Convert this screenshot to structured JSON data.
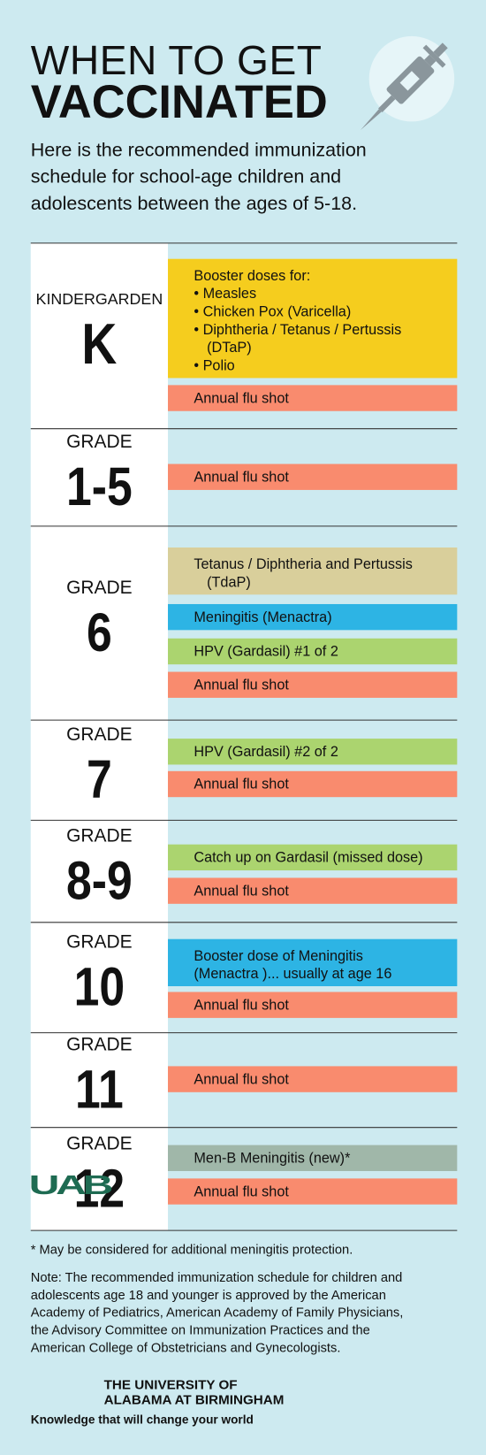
{
  "header": {
    "title_lines": [
      "WHEN TO GET",
      "VACCINATED"
    ],
    "subtitle_lines": [
      "Here is the recommended immunization",
      "schedule for school-age children and",
      "adolescents between the ages of 5-18."
    ]
  },
  "rows": [
    {
      "label": "KINDERGARDEN",
      "number": "K",
      "items": [
        {
          "lines": [
            "Booster doses for:",
            "• Measles",
            "• Chicken Pox (Varicella)",
            "• Diphtheria / Tetanus / Pertussis",
            "(DTaP)",
            "• Polio"
          ],
          "color": "#f5cd1e"
        },
        {
          "lines": [
            "Annual flu shot"
          ],
          "color": "#f98b6e"
        }
      ]
    },
    {
      "label": "GRADE",
      "number": "1-5",
      "items": [
        {
          "lines": [
            "Annual flu shot"
          ],
          "color": "#f98b6e"
        }
      ]
    },
    {
      "label": "GRADE",
      "number": "6",
      "items": [
        {
          "lines": [
            "Tetanus / Diphtheria and Pertussis",
            "(TdaP)"
          ],
          "color": "#d9cf9b"
        },
        {
          "lines": [
            "Meningitis (Menactra)"
          ],
          "color": "#2db4e4"
        },
        {
          "lines": [
            "HPV (Gardasil) #1 of 2"
          ],
          "color": "#abd46f"
        },
        {
          "lines": [
            "Annual flu shot"
          ],
          "color": "#f98b6e"
        }
      ]
    },
    {
      "label": "GRADE",
      "number": "7",
      "items": [
        {
          "lines": [
            "HPV (Gardasil) #2 of 2"
          ],
          "color": "#abd46f"
        },
        {
          "lines": [
            "Annual flu shot"
          ],
          "color": "#f98b6e"
        }
      ]
    },
    {
      "label": "GRADE",
      "number": "8-9",
      "items": [
        {
          "lines": [
            "Catch up on Gardasil (missed dose)"
          ],
          "color": "#abd46f"
        },
        {
          "lines": [
            "Annual flu shot"
          ],
          "color": "#f98b6e"
        }
      ]
    },
    {
      "label": "GRADE",
      "number": "10",
      "items": [
        {
          "lines": [
            "Booster dose of Meningitis",
            "(Menactra )... usually at age 16"
          ],
          "color": "#2db4e4"
        },
        {
          "lines": [
            "Annual flu shot"
          ],
          "color": "#f98b6e"
        }
      ]
    },
    {
      "label": "GRADE",
      "number": "11",
      "items": [
        {
          "lines": [
            "Annual flu shot"
          ],
          "color": "#f98b6e"
        }
      ]
    },
    {
      "label": "GRADE",
      "number": "12",
      "items": [
        {
          "lines": [
            "Men-B Meningitis (new)*"
          ],
          "color": "#a0b7a9"
        },
        {
          "lines": [
            "Annual flu shot"
          ],
          "color": "#f98b6e"
        }
      ]
    }
  ],
  "footnote": "* May be considered for additional meningitis protection.",
  "note_lines": [
    "Note: The recommended immunization schedule for children and",
    "adolescents age 18 and younger is approved by the American",
    "Academy of Pediatrics, American Academy of Family Physicians,",
    "the Advisory Committee on Immunization Practices and the",
    "American College of Obstetricians and Gynecologists."
  ],
  "footer": {
    "logo": "UAB",
    "university_lines": [
      "THE UNIVERSITY OF",
      "ALABAMA AT BIRMINGHAM"
    ],
    "tagline": "Knowledge that will change your world"
  }
}
